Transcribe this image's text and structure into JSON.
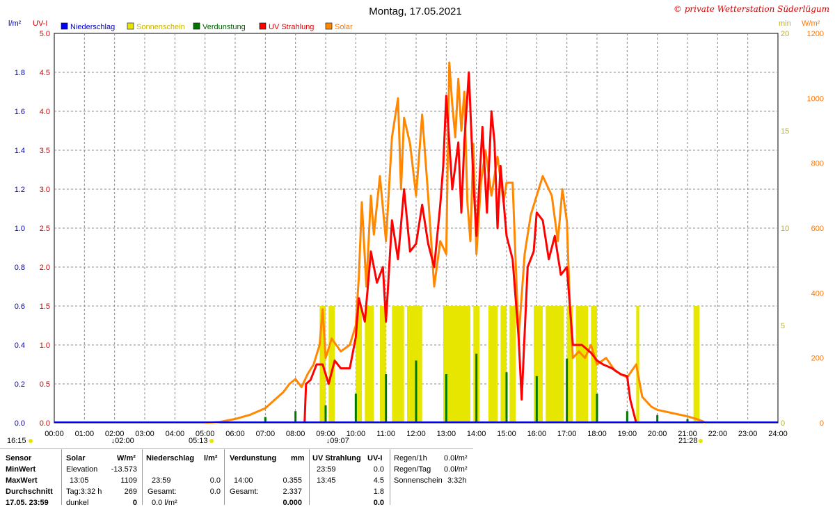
{
  "title": "Montag, 17.05.2021",
  "copyright": "© private Wetterstation Süderlügum",
  "axis_units": {
    "left1": "l/m²",
    "left2": "UV-I",
    "right1": "min",
    "right2": "W/m²"
  },
  "legend": [
    {
      "label": "Niederschlag",
      "color": "#0000ff",
      "text_color": "#0000c0"
    },
    {
      "label": "Sonnenschein",
      "color": "#e6e600",
      "text_color": "#c8b400"
    },
    {
      "label": "Verdunstung",
      "color": "#007800",
      "text_color": "#006000"
    },
    {
      "label": "UV Strahlung",
      "color": "#ff0000",
      "text_color": "#e00000"
    },
    {
      "label": "Solar",
      "color": "#ff8800",
      "text_color": "#ff7700"
    }
  ],
  "ticks": {
    "precip": [
      "0.0",
      "0.2",
      "0.4",
      "0.6",
      "0.8",
      "1.0",
      "1.2",
      "1.4",
      "1.6",
      "1.8"
    ],
    "uv": [
      "0.0",
      "0.5",
      "1.0",
      "1.5",
      "2.0",
      "2.5",
      "3.0",
      "3.5",
      "4.0",
      "4.5",
      "5.0"
    ],
    "sun_min": [
      "0",
      "5",
      "10",
      "15",
      "20"
    ],
    "solar": [
      "0",
      "200",
      "400",
      "600",
      "800",
      "1000",
      "1200"
    ],
    "time": [
      "00:00",
      "01:00",
      "02:00",
      "03:00",
      "04:00",
      "05:00",
      "06:00",
      "07:00",
      "08:00",
      "09:00",
      "10:00",
      "11:00",
      "12:00",
      "13:00",
      "14:00",
      "15:00",
      "16:00",
      "17:00",
      "18:00",
      "19:00",
      "20:00",
      "21:00",
      "22:00",
      "23:00",
      "24:00"
    ]
  },
  "markers": {
    "time_now": "16:15",
    "min_time": "02:00",
    "sunrise": "05:13",
    "max_time": "09:07",
    "sunset": "21:28"
  },
  "chart_data": {
    "type": "line",
    "x_unit": "hour of day",
    "xlim": [
      0,
      24
    ],
    "axes": {
      "precip_ylim": [
        0,
        2.0
      ],
      "uv_ylim": [
        0,
        5.0
      ],
      "sun_ylim": [
        0,
        20
      ],
      "solar_ylim": [
        0,
        1200
      ]
    },
    "grid": true,
    "legend_position": "top",
    "series": [
      {
        "name": "Solar",
        "axis": "solar",
        "color": "#ff8800",
        "points": [
          [
            5.0,
            0
          ],
          [
            5.5,
            3
          ],
          [
            6.0,
            12
          ],
          [
            6.5,
            25
          ],
          [
            7.0,
            45
          ],
          [
            7.3,
            70
          ],
          [
            7.6,
            95
          ],
          [
            7.8,
            120
          ],
          [
            8.0,
            135
          ],
          [
            8.2,
            110
          ],
          [
            8.4,
            150
          ],
          [
            8.6,
            180
          ],
          [
            8.8,
            240
          ],
          [
            8.9,
            350
          ],
          [
            9.0,
            200
          ],
          [
            9.2,
            260
          ],
          [
            9.5,
            220
          ],
          [
            9.8,
            240
          ],
          [
            10.0,
            300
          ],
          [
            10.1,
            450
          ],
          [
            10.2,
            680
          ],
          [
            10.35,
            420
          ],
          [
            10.5,
            700
          ],
          [
            10.6,
            580
          ],
          [
            10.8,
            760
          ],
          [
            11.0,
            560
          ],
          [
            11.2,
            880
          ],
          [
            11.4,
            1000
          ],
          [
            11.5,
            720
          ],
          [
            11.6,
            940
          ],
          [
            11.8,
            860
          ],
          [
            12.0,
            700
          ],
          [
            12.2,
            950
          ],
          [
            12.4,
            700
          ],
          [
            12.6,
            420
          ],
          [
            12.8,
            560
          ],
          [
            13.0,
            520
          ],
          [
            13.1,
            1110
          ],
          [
            13.2,
            980
          ],
          [
            13.3,
            880
          ],
          [
            13.4,
            1060
          ],
          [
            13.5,
            900
          ],
          [
            13.6,
            1020
          ],
          [
            13.7,
            680
          ],
          [
            13.8,
            560
          ],
          [
            13.9,
            860
          ],
          [
            14.0,
            520
          ],
          [
            14.15,
            740
          ],
          [
            14.3,
            840
          ],
          [
            14.5,
            700
          ],
          [
            14.7,
            820
          ],
          [
            14.9,
            680
          ],
          [
            15.0,
            740
          ],
          [
            15.2,
            740
          ],
          [
            15.4,
            260
          ],
          [
            15.6,
            520
          ],
          [
            15.8,
            640
          ],
          [
            16.0,
            700
          ],
          [
            16.2,
            760
          ],
          [
            16.5,
            700
          ],
          [
            16.7,
            560
          ],
          [
            16.85,
            720
          ],
          [
            17.0,
            620
          ],
          [
            17.1,
            360
          ],
          [
            17.2,
            200
          ],
          [
            17.4,
            220
          ],
          [
            17.6,
            200
          ],
          [
            17.8,
            240
          ],
          [
            18.0,
            180
          ],
          [
            18.3,
            200
          ],
          [
            18.6,
            160
          ],
          [
            19.0,
            140
          ],
          [
            19.3,
            180
          ],
          [
            19.5,
            80
          ],
          [
            19.8,
            50
          ],
          [
            20.0,
            40
          ],
          [
            20.5,
            30
          ],
          [
            21.0,
            20
          ],
          [
            21.3,
            12
          ],
          [
            21.5,
            5
          ],
          [
            21.6,
            0
          ]
        ]
      },
      {
        "name": "UV Strahlung",
        "axis": "uv",
        "color": "#ff0000",
        "points": [
          [
            8.3,
            0
          ],
          [
            8.35,
            0.5
          ],
          [
            8.5,
            0.55
          ],
          [
            8.7,
            0.75
          ],
          [
            8.9,
            0.75
          ],
          [
            9.1,
            0.5
          ],
          [
            9.3,
            0.8
          ],
          [
            9.5,
            0.7
          ],
          [
            9.8,
            0.7
          ],
          [
            10.0,
            1.1
          ],
          [
            10.1,
            1.6
          ],
          [
            10.3,
            1.3
          ],
          [
            10.5,
            2.2
          ],
          [
            10.7,
            1.8
          ],
          [
            10.9,
            2.0
          ],
          [
            11.0,
            1.3
          ],
          [
            11.2,
            2.6
          ],
          [
            11.4,
            2.1
          ],
          [
            11.6,
            3.0
          ],
          [
            11.8,
            2.2
          ],
          [
            12.0,
            2.3
          ],
          [
            12.2,
            2.8
          ],
          [
            12.4,
            2.3
          ],
          [
            12.6,
            2.0
          ],
          [
            12.8,
            2.8
          ],
          [
            12.9,
            3.3
          ],
          [
            13.0,
            4.2
          ],
          [
            13.2,
            3.0
          ],
          [
            13.4,
            3.6
          ],
          [
            13.5,
            2.7
          ],
          [
            13.6,
            3.6
          ],
          [
            13.75,
            4.5
          ],
          [
            13.9,
            3.1
          ],
          [
            14.0,
            2.4
          ],
          [
            14.2,
            3.8
          ],
          [
            14.35,
            2.7
          ],
          [
            14.5,
            4.0
          ],
          [
            14.6,
            3.6
          ],
          [
            14.7,
            2.5
          ],
          [
            14.8,
            3.3
          ],
          [
            15.0,
            2.4
          ],
          [
            15.2,
            2.1
          ],
          [
            15.4,
            1.1
          ],
          [
            15.5,
            0.3
          ],
          [
            15.7,
            2.0
          ],
          [
            15.9,
            2.2
          ],
          [
            16.0,
            2.7
          ],
          [
            16.2,
            2.6
          ],
          [
            16.4,
            2.1
          ],
          [
            16.6,
            2.4
          ],
          [
            16.8,
            1.9
          ],
          [
            17.0,
            2.0
          ],
          [
            17.2,
            1.0
          ],
          [
            17.5,
            1.0
          ],
          [
            17.8,
            0.9
          ],
          [
            18.0,
            0.8
          ],
          [
            18.2,
            0.75
          ],
          [
            18.5,
            0.7
          ],
          [
            18.8,
            0.62
          ],
          [
            19.0,
            0.6
          ],
          [
            19.1,
            0.3
          ],
          [
            19.3,
            0.0
          ]
        ]
      }
    ],
    "sunshine_minutes": {
      "name": "Sonnenschein",
      "axis": "sun_min",
      "color": "#e6e600",
      "intervals": [
        [
          8.8,
          9.0
        ],
        [
          9.1,
          9.3
        ],
        [
          10.0,
          10.2
        ],
        [
          10.3,
          10.6
        ],
        [
          10.8,
          11.0
        ],
        [
          11.2,
          11.6
        ],
        [
          11.7,
          12.0
        ],
        [
          12.0,
          12.2
        ],
        [
          12.9,
          13.8
        ],
        [
          13.9,
          14.1
        ],
        [
          14.4,
          14.7
        ],
        [
          14.8,
          15.0
        ],
        [
          15.1,
          15.3
        ],
        [
          15.9,
          16.2
        ],
        [
          16.3,
          16.9
        ],
        [
          17.0,
          17.2
        ],
        [
          17.3,
          17.7
        ],
        [
          17.8,
          18.0
        ],
        [
          19.3,
          19.4
        ],
        [
          21.2,
          21.4
        ]
      ],
      "value": 6
    },
    "evaporation_bars": {
      "name": "Verdunstung",
      "axis": "precip",
      "color": "#007800",
      "bars": [
        [
          7.0,
          0.03
        ],
        [
          8.0,
          0.06
        ],
        [
          9.0,
          0.09
        ],
        [
          10.0,
          0.15
        ],
        [
          11.0,
          0.25
        ],
        [
          12.0,
          0.32
        ],
        [
          13.0,
          0.25
        ],
        [
          14.0,
          0.355
        ],
        [
          15.0,
          0.26
        ],
        [
          16.0,
          0.24
        ],
        [
          17.0,
          0.33
        ],
        [
          18.0,
          0.15
        ],
        [
          19.0,
          0.06
        ],
        [
          20.0,
          0.04
        ],
        [
          21.0,
          0.02
        ]
      ]
    },
    "precipitation": {
      "name": "Niederschlag",
      "axis": "precip",
      "color": "#0000ff",
      "values": [
        [
          0,
          0
        ],
        [
          24,
          0
        ]
      ]
    }
  },
  "stats": {
    "headers": {
      "sensor": "Sensor",
      "solar": "Solar",
      "solar_unit": "W/m²",
      "precip": "Niederschlag",
      "precip_unit": "l/m²",
      "evap": "Verdunstung",
      "evap_unit": "mm",
      "uv": "UV Strahlung",
      "uv_unit": "UV-I"
    },
    "rows": {
      "min": {
        "label": "MinWert",
        "solar_a": "Elevation",
        "solar_b": "-13.573",
        "uv_time": "23:59",
        "uv_val": "0.0"
      },
      "max": {
        "label": "MaxWert",
        "solar_a": "13:05",
        "solar_b": "1109",
        "precip_a": "23:59",
        "precip_b": "0.0",
        "evap_a": "14:00",
        "evap_b": "0.355",
        "uv_time": "13:45",
        "uv_val": "4.5"
      },
      "avg": {
        "label": "Durchschnitt",
        "solar_a": "Tag:3:32 h",
        "solar_b": "269",
        "precip_a": "Gesamt:",
        "precip_b": "0.0",
        "evap_a": "Gesamt:",
        "evap_b": "2.337",
        "uv_val": "1.8"
      },
      "sum": {
        "label": "17.05. 23:59",
        "solar_a": "dunkel",
        "solar_b": "0",
        "precip_a": "0.0 l/m²",
        "evap_b": "0.000",
        "uv_val": "0.0"
      }
    },
    "regen": [
      {
        "label": "Regen/1h",
        "value": "0.0l/m²"
      },
      {
        "label": "Regen/Tag",
        "value": "0.0l/m²"
      },
      {
        "label": "Sonnenschein",
        "value": "3:32h"
      }
    ]
  }
}
